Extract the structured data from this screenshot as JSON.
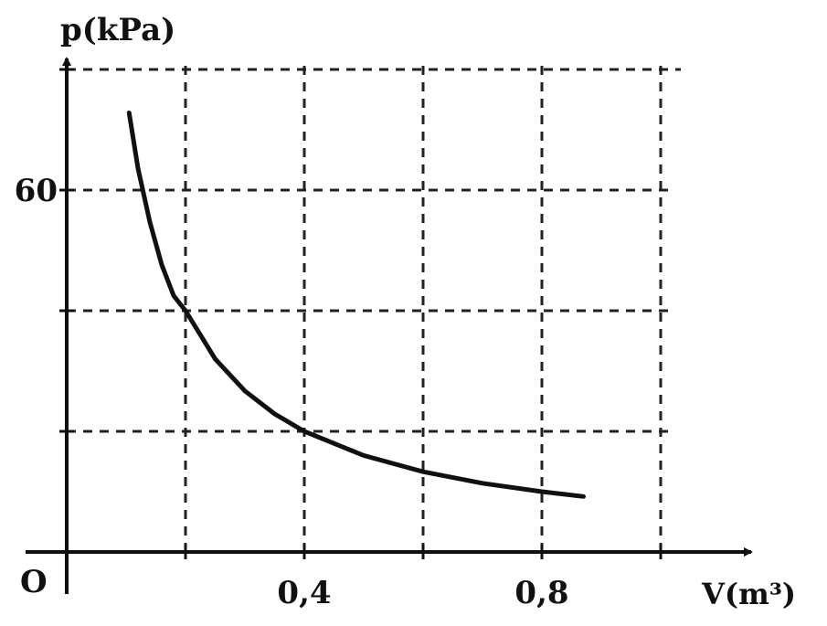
{
  "chart_data": {
    "type": "line",
    "title": "",
    "ylabel": "p(kPa)",
    "xlabel": "V(m³)",
    "origin_label": "O",
    "xlim": [
      0,
      1.0
    ],
    "ylim": [
      0,
      80
    ],
    "x_gridlines": [
      0.2,
      0.4,
      0.6,
      0.8,
      1.0
    ],
    "y_gridlines": [
      20,
      40,
      60,
      80
    ],
    "x_tick_labels": [
      {
        "value": 0.4,
        "label": "0,4"
      },
      {
        "value": 0.8,
        "label": "0,8"
      }
    ],
    "y_tick_labels": [
      {
        "value": 60,
        "label": "60"
      }
    ],
    "grid": true,
    "grid_style": "dashed",
    "series": [
      {
        "values": [
          [
            0.105,
            72.8
          ],
          [
            0.12,
            63.6
          ],
          [
            0.14,
            54.7
          ],
          [
            0.16,
            47.6
          ],
          [
            0.18,
            42.5
          ],
          [
            0.2,
            40.0
          ],
          [
            0.25,
            32.0
          ],
          [
            0.3,
            26.7
          ],
          [
            0.35,
            22.9
          ],
          [
            0.4,
            20.0
          ],
          [
            0.5,
            16.0
          ],
          [
            0.6,
            13.3
          ],
          [
            0.7,
            11.4
          ],
          [
            0.8,
            10.0
          ],
          [
            0.87,
            9.2
          ]
        ]
      }
    ]
  }
}
